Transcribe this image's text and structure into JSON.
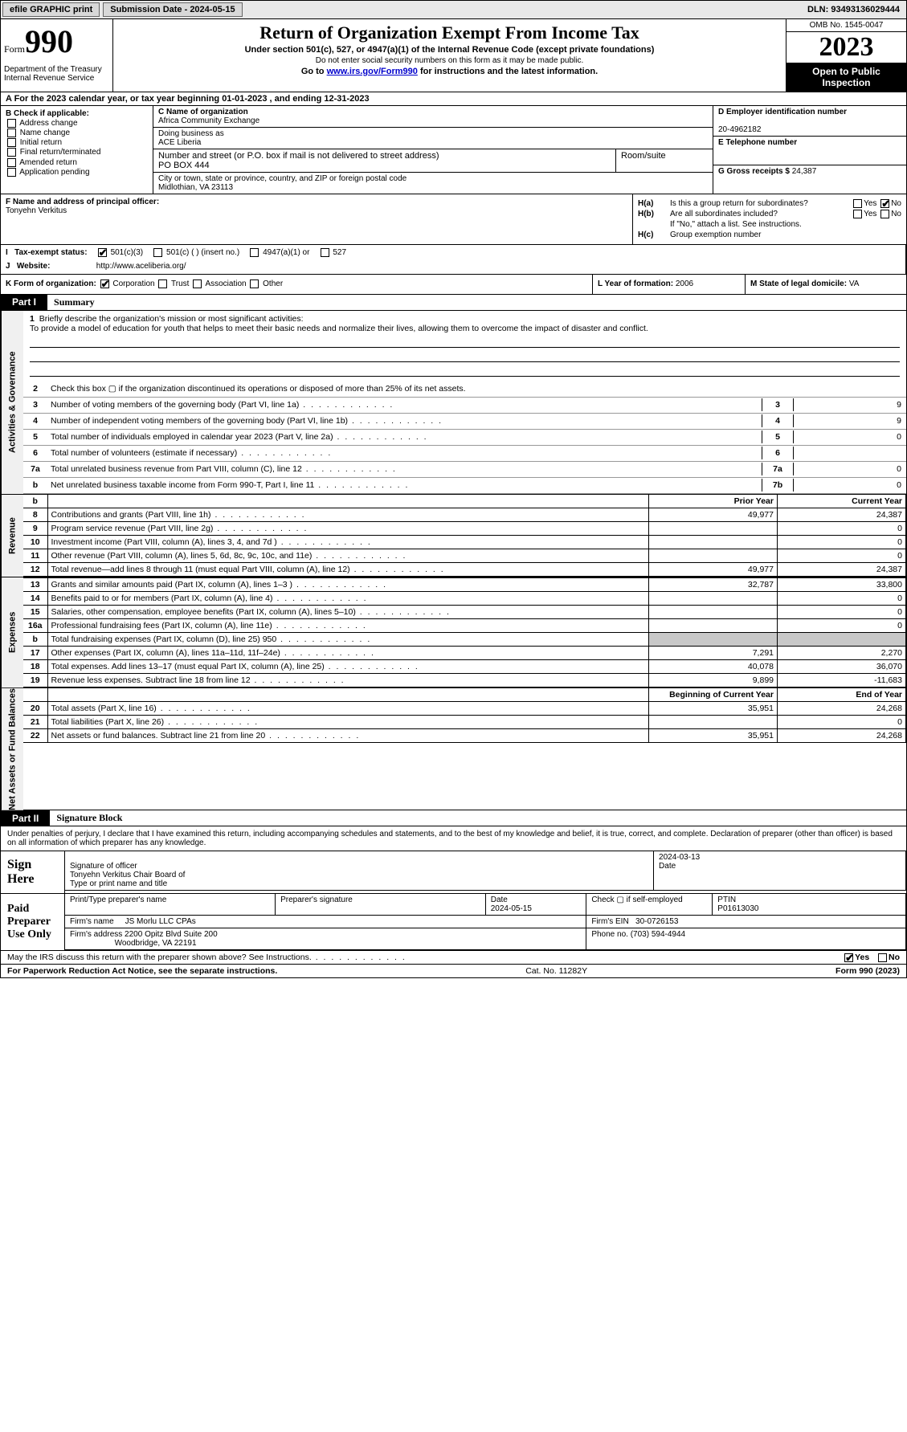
{
  "topbar": {
    "efile": "efile GRAPHIC print",
    "submission": "Submission Date - 2024-05-15",
    "dln": "DLN: 93493136029444"
  },
  "header": {
    "form_word": "Form",
    "form_num": "990",
    "dept": "Department of the Treasury Internal Revenue Service",
    "title": "Return of Organization Exempt From Income Tax",
    "sub1": "Under section 501(c), 527, or 4947(a)(1) of the Internal Revenue Code (except private foundations)",
    "sub2": "Do not enter social security numbers on this form as it may be made public.",
    "sub3_pre": "Go to ",
    "sub3_link": "www.irs.gov/Form990",
    "sub3_post": " for instructions and the latest information.",
    "omb": "OMB No. 1545-0047",
    "year": "2023",
    "inspect": "Open to Public Inspection"
  },
  "rowA": "A For the 2023 calendar year, or tax year beginning 01-01-2023    , and ending 12-31-2023",
  "boxB": {
    "label": "B Check if applicable:",
    "opts": [
      "Address change",
      "Name change",
      "Initial return",
      "Final return/terminated",
      "Amended return",
      "Application pending"
    ]
  },
  "boxC": {
    "name_lbl": "C Name of organization",
    "name": "Africa Community Exchange",
    "dba_lbl": "Doing business as",
    "dba": "ACE Liberia",
    "street_lbl": "Number and street (or P.O. box if mail is not delivered to street address)",
    "street": "PO BOX 444",
    "suite_lbl": "Room/suite",
    "city_lbl": "City or town, state or province, country, and ZIP or foreign postal code",
    "city": "Midlothian, VA   23113"
  },
  "boxD": {
    "lbl": "D Employer identification number",
    "val": "20-4962182"
  },
  "boxE": {
    "lbl": "E Telephone number",
    "val": ""
  },
  "boxG": {
    "lbl": "G Gross receipts $",
    "val": "24,387"
  },
  "boxF": {
    "lbl": "F  Name and address of principal officer:",
    "val": "Tonyehn Verkitus"
  },
  "boxH": {
    "a": "Is this a group return for subordinates?",
    "b": "Are all subordinates included?",
    "b_note": "If \"No,\" attach a list. See instructions.",
    "c": "Group exemption number",
    "yes": "Yes",
    "no": "No"
  },
  "rowI": {
    "lblI": "Tax-exempt status:",
    "opts": [
      "501(c)(3)",
      "501(c) (  ) (insert no.)",
      "4947(a)(1) or",
      "527"
    ],
    "lblJ": "Website:",
    "website": "http://www.aceliberia.org/"
  },
  "rowK": {
    "k": "K Form of organization:",
    "opts": [
      "Corporation",
      "Trust",
      "Association",
      "Other"
    ],
    "l_lbl": "L Year of formation:",
    "l_val": "2006",
    "m_lbl": "M State of legal domicile:",
    "m_val": "VA"
  },
  "part1": {
    "num": "Part I",
    "title": "Summary"
  },
  "mission": {
    "q": "Briefly describe the organization's mission or most significant activities:",
    "text": "To provide a model of education for youth that helps to meet their basic needs and normalize their lives, allowing them to overcome the impact of disaster and conflict."
  },
  "gov_lines": {
    "l2": "Check this box ▢ if the organization discontinued its operations or disposed of more than 25% of its net assets.",
    "rows": [
      {
        "n": "3",
        "d": "Number of voting members of the governing body (Part VI, line 1a)",
        "box": "3",
        "v": "9"
      },
      {
        "n": "4",
        "d": "Number of independent voting members of the governing body (Part VI, line 1b)",
        "box": "4",
        "v": "9"
      },
      {
        "n": "5",
        "d": "Total number of individuals employed in calendar year 2023 (Part V, line 2a)",
        "box": "5",
        "v": "0"
      },
      {
        "n": "6",
        "d": "Total number of volunteers (estimate if necessary)",
        "box": "6",
        "v": ""
      },
      {
        "n": "7a",
        "d": "Total unrelated business revenue from Part VIII, column (C), line 12",
        "box": "7a",
        "v": "0"
      },
      {
        "n": "b",
        "d": "Net unrelated business taxable income from Form 990-T, Part I, line 11",
        "box": "7b",
        "v": "0"
      }
    ]
  },
  "vtabs": {
    "gov": "Activities & Governance",
    "rev": "Revenue",
    "exp": "Expenses",
    "net": "Net Assets or Fund Balances"
  },
  "col_hdrs": {
    "prior": "Prior Year",
    "current": "Current Year",
    "begin": "Beginning of Current Year",
    "end": "End of Year"
  },
  "revenue": [
    {
      "n": "8",
      "d": "Contributions and grants (Part VIII, line 1h)",
      "p": "49,977",
      "c": "24,387"
    },
    {
      "n": "9",
      "d": "Program service revenue (Part VIII, line 2g)",
      "p": "",
      "c": "0"
    },
    {
      "n": "10",
      "d": "Investment income (Part VIII, column (A), lines 3, 4, and 7d )",
      "p": "",
      "c": "0"
    },
    {
      "n": "11",
      "d": "Other revenue (Part VIII, column (A), lines 5, 6d, 8c, 9c, 10c, and 11e)",
      "p": "",
      "c": "0"
    },
    {
      "n": "12",
      "d": "Total revenue—add lines 8 through 11 (must equal Part VIII, column (A), line 12)",
      "p": "49,977",
      "c": "24,387"
    }
  ],
  "expenses": [
    {
      "n": "13",
      "d": "Grants and similar amounts paid (Part IX, column (A), lines 1–3 )",
      "p": "32,787",
      "c": "33,800"
    },
    {
      "n": "14",
      "d": "Benefits paid to or for members (Part IX, column (A), line 4)",
      "p": "",
      "c": "0"
    },
    {
      "n": "15",
      "d": "Salaries, other compensation, employee benefits (Part IX, column (A), lines 5–10)",
      "p": "",
      "c": "0"
    },
    {
      "n": "16a",
      "d": "Professional fundraising fees (Part IX, column (A), line 11e)",
      "p": "",
      "c": "0"
    },
    {
      "n": "b",
      "d": "Total fundraising expenses (Part IX, column (D), line 25) 950",
      "p": "SHADE",
      "c": "SHADE"
    },
    {
      "n": "17",
      "d": "Other expenses (Part IX, column (A), lines 11a–11d, 11f–24e)",
      "p": "7,291",
      "c": "2,270"
    },
    {
      "n": "18",
      "d": "Total expenses. Add lines 13–17 (must equal Part IX, column (A), line 25)",
      "p": "40,078",
      "c": "36,070"
    },
    {
      "n": "19",
      "d": "Revenue less expenses. Subtract line 18 from line 12",
      "p": "9,899",
      "c": "-11,683"
    }
  ],
  "netassets": [
    {
      "n": "20",
      "d": "Total assets (Part X, line 16)",
      "p": "35,951",
      "c": "24,268"
    },
    {
      "n": "21",
      "d": "Total liabilities (Part X, line 26)",
      "p": "",
      "c": "0"
    },
    {
      "n": "22",
      "d": "Net assets or fund balances. Subtract line 21 from line 20",
      "p": "35,951",
      "c": "24,268"
    }
  ],
  "part2": {
    "num": "Part II",
    "title": "Signature Block"
  },
  "sig": {
    "decl": "Under penalties of perjury, I declare that I have examined this return, including accompanying schedules and statements, and to the best of my knowledge and belief, it is true, correct, and complete. Declaration of preparer (other than officer) is based on all information of which preparer has any knowledge.",
    "sign_here": "Sign Here",
    "sig_officer": "Signature of officer",
    "officer_name": "Tonyehn Verkitus Chair Board of",
    "type_name": "Type or print name and title",
    "date1": "2024-03-13",
    "date_lbl": "Date",
    "paid": "Paid Preparer Use Only",
    "prep_name_lbl": "Print/Type preparer's name",
    "prep_sig_lbl": "Preparer's signature",
    "date2": "2024-05-15",
    "check_self": "Check ▢ if self-employed",
    "ptin_lbl": "PTIN",
    "ptin": "P01613030",
    "firm_name_lbl": "Firm's name",
    "firm_name": "JS Morlu LLC CPAs",
    "firm_ein_lbl": "Firm's EIN",
    "firm_ein": "30-0726153",
    "firm_addr_lbl": "Firm's address",
    "firm_addr1": "2200 Opitz Blvd Suite 200",
    "firm_addr2": "Woodbridge, VA   22191",
    "phone_lbl": "Phone no.",
    "phone": "(703) 594-4944"
  },
  "discuss": "May the IRS discuss this return with the preparer shown above? See Instructions.",
  "footer": {
    "left": "For Paperwork Reduction Act Notice, see the separate instructions.",
    "mid": "Cat. No. 11282Y",
    "right": "Form 990 (2023)"
  }
}
